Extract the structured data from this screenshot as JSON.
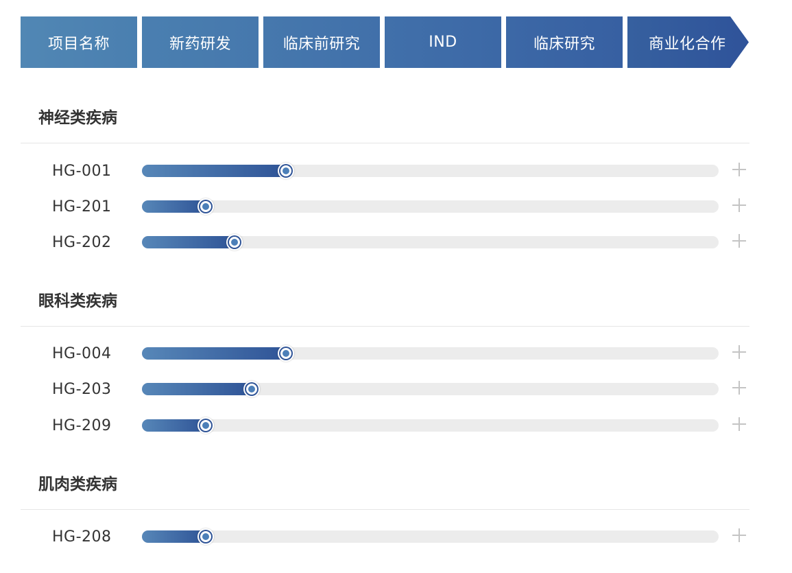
{
  "header": {
    "stages": [
      "项目名称",
      "新药研发",
      "临床前研究",
      "IND",
      "临床研究",
      "商业化合作"
    ]
  },
  "sections": [
    {
      "title": "神经类疾病",
      "items": [
        {
          "name": "HG-001",
          "progress": 0.25
        },
        {
          "name": "HG-201",
          "progress": 0.11
        },
        {
          "name": "HG-202",
          "progress": 0.16
        }
      ]
    },
    {
      "title": "眼科类疾病",
      "items": [
        {
          "name": "HG-004",
          "progress": 0.25
        },
        {
          "name": "HG-203",
          "progress": 0.19
        },
        {
          "name": "HG-209",
          "progress": 0.11
        }
      ]
    },
    {
      "title": "肌肉类疾病",
      "items": [
        {
          "name": "HG-208",
          "progress": 0.11
        }
      ]
    }
  ],
  "icons": {
    "expand": "plus-icon",
    "marker": "progress-knob-icon"
  },
  "colors": {
    "accent_start": "#5787b8",
    "accent_end": "#2f5497",
    "track": "#ececec",
    "plus": "#c4c4c4"
  }
}
